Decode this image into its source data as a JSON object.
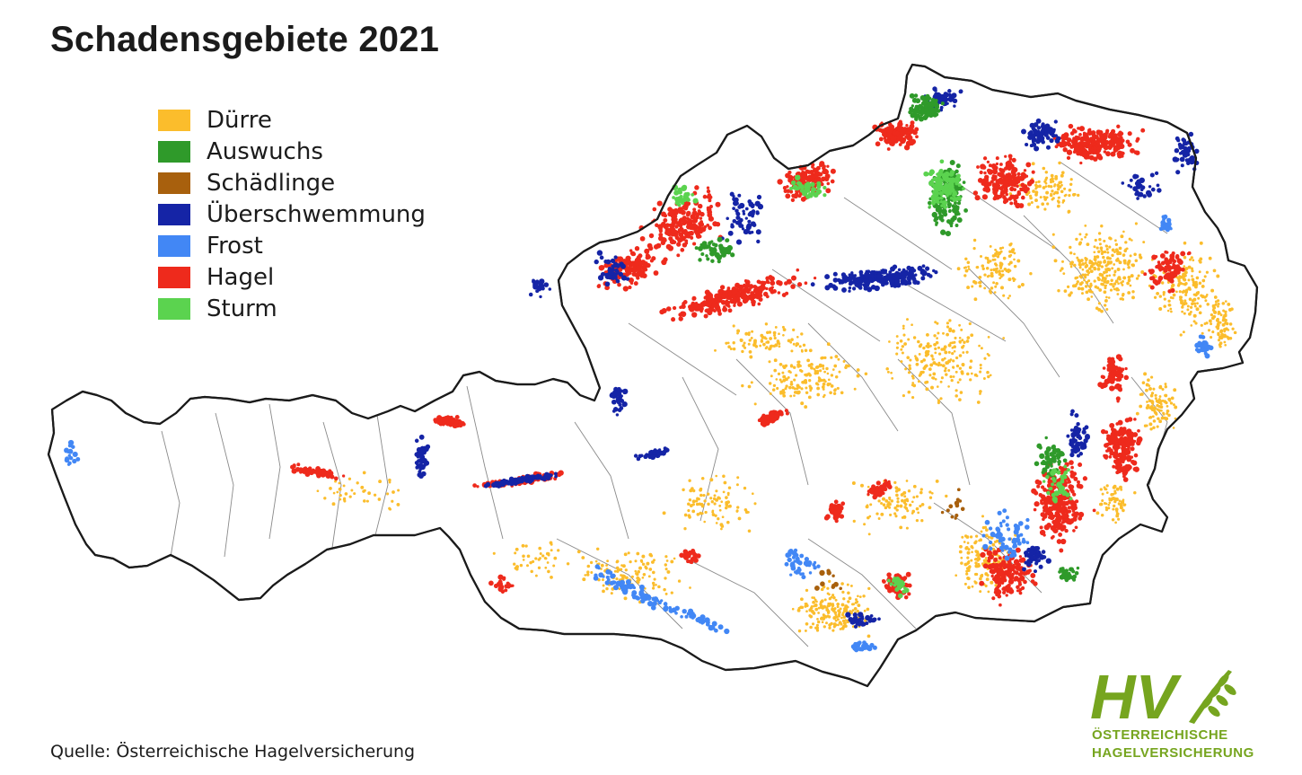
{
  "title": "Schadensgebiete 2021",
  "legend": [
    {
      "label": "Dürre",
      "color": "#fbbd2c"
    },
    {
      "label": "Auswuchs",
      "color": "#2f9a2a"
    },
    {
      "label": "Schädlinge",
      "color": "#a8600d"
    },
    {
      "label": "Überschwemmung",
      "color": "#1524a6"
    },
    {
      "label": "Frost",
      "color": "#4287f5"
    },
    {
      "label": "Hagel",
      "color": "#ee2a1c"
    },
    {
      "label": "Sturm",
      "color": "#5bd34f"
    }
  ],
  "source": "Quelle: Österreichische Hagelversicherung",
  "logo": {
    "initials": "HV",
    "line1": "ÖSTERREICHISCHE",
    "line2": "HAGELVERSICHERUNG",
    "color": "#76a51f"
  },
  "map": {
    "region": "Österreich",
    "border_color": "#1b1b1b",
    "district_line_color": "#8a8a8a"
  }
}
